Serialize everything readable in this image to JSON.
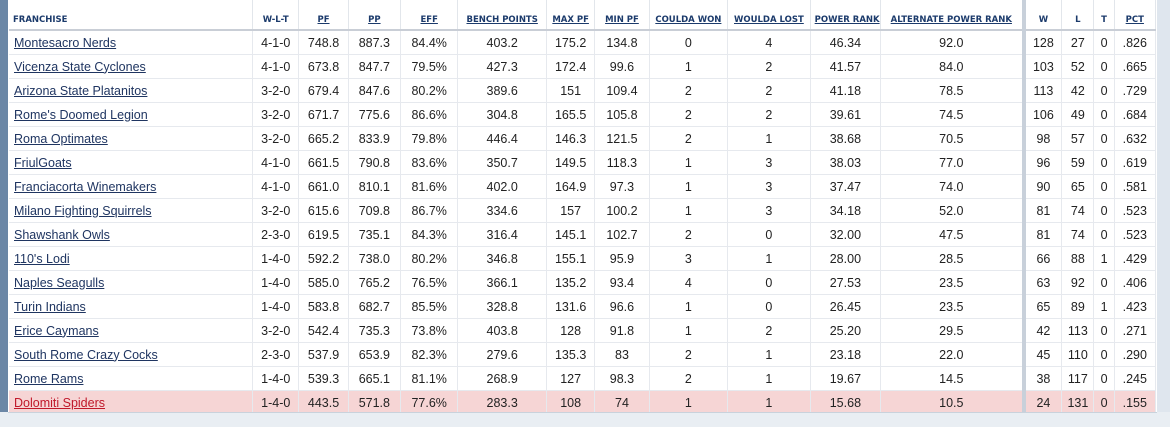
{
  "headers": {
    "franchise": "FRANCHISE",
    "wlt": "W-L-T",
    "pf": "PF",
    "pp": "PP",
    "eff": "EFF",
    "bench": "BENCH POINTS",
    "maxpf": "MAX PF",
    "minpf": "MIN PF",
    "coulda": "COULDA WON",
    "woulda": "WOULDA LOST",
    "power": "POWER RANK",
    "altpower": "ALTERNATE POWER RANK",
    "w": "W",
    "l": "L",
    "t": "T",
    "pct": "PCT"
  },
  "rows": [
    {
      "name": "Montesacro Nerds",
      "wlt": "4-1-0",
      "pf": "748.8",
      "pp": "887.3",
      "eff": "84.4%",
      "bench": "403.2",
      "maxpf": "175.2",
      "minpf": "134.8",
      "coulda": "0",
      "woulda": "4",
      "power": "46.34",
      "alt": "92.0",
      "w": "128",
      "l": "27",
      "t": "0",
      "pct": ".826"
    },
    {
      "name": "Vicenza State Cyclones",
      "wlt": "4-1-0",
      "pf": "673.8",
      "pp": "847.7",
      "eff": "79.5%",
      "bench": "427.3",
      "maxpf": "172.4",
      "minpf": "99.6",
      "coulda": "1",
      "woulda": "2",
      "power": "41.57",
      "alt": "84.0",
      "w": "103",
      "l": "52",
      "t": "0",
      "pct": ".665"
    },
    {
      "name": "Arizona State Platanitos",
      "wlt": "3-2-0",
      "pf": "679.4",
      "pp": "847.6",
      "eff": "80.2%",
      "bench": "389.6",
      "maxpf": "151",
      "minpf": "109.4",
      "coulda": "2",
      "woulda": "2",
      "power": "41.18",
      "alt": "78.5",
      "w": "113",
      "l": "42",
      "t": "0",
      "pct": ".729"
    },
    {
      "name": "Rome's Doomed Legion",
      "wlt": "3-2-0",
      "pf": "671.7",
      "pp": "775.6",
      "eff": "86.6%",
      "bench": "304.8",
      "maxpf": "165.5",
      "minpf": "105.8",
      "coulda": "2",
      "woulda": "2",
      "power": "39.61",
      "alt": "74.5",
      "w": "106",
      "l": "49",
      "t": "0",
      "pct": ".684"
    },
    {
      "name": "Roma Optimates",
      "wlt": "3-2-0",
      "pf": "665.2",
      "pp": "833.9",
      "eff": "79.8%",
      "bench": "446.4",
      "maxpf": "146.3",
      "minpf": "121.5",
      "coulda": "2",
      "woulda": "1",
      "power": "38.68",
      "alt": "70.5",
      "w": "98",
      "l": "57",
      "t": "0",
      "pct": ".632"
    },
    {
      "name": "FriulGoats",
      "wlt": "4-1-0",
      "pf": "661.5",
      "pp": "790.8",
      "eff": "83.6%",
      "bench": "350.7",
      "maxpf": "149.5",
      "minpf": "118.3",
      "coulda": "1",
      "woulda": "3",
      "power": "38.03",
      "alt": "77.0",
      "w": "96",
      "l": "59",
      "t": "0",
      "pct": ".619"
    },
    {
      "name": "Franciacorta Winemakers",
      "wlt": "4-1-0",
      "pf": "661.0",
      "pp": "810.1",
      "eff": "81.6%",
      "bench": "402.0",
      "maxpf": "164.9",
      "minpf": "97.3",
      "coulda": "1",
      "woulda": "3",
      "power": "37.47",
      "alt": "74.0",
      "w": "90",
      "l": "65",
      "t": "0",
      "pct": ".581"
    },
    {
      "name": "Milano Fighting Squirrels",
      "wlt": "3-2-0",
      "pf": "615.6",
      "pp": "709.8",
      "eff": "86.7%",
      "bench": "334.6",
      "maxpf": "157",
      "minpf": "100.2",
      "coulda": "1",
      "woulda": "3",
      "power": "34.18",
      "alt": "52.0",
      "w": "81",
      "l": "74",
      "t": "0",
      "pct": ".523"
    },
    {
      "name": "Shawshank Owls",
      "wlt": "2-3-0",
      "pf": "619.5",
      "pp": "735.1",
      "eff": "84.3%",
      "bench": "316.4",
      "maxpf": "145.1",
      "minpf": "102.7",
      "coulda": "2",
      "woulda": "0",
      "power": "32.00",
      "alt": "47.5",
      "w": "81",
      "l": "74",
      "t": "0",
      "pct": ".523"
    },
    {
      "name": "110's Lodi",
      "wlt": "1-4-0",
      "pf": "592.2",
      "pp": "738.0",
      "eff": "80.2%",
      "bench": "346.8",
      "maxpf": "155.1",
      "minpf": "95.9",
      "coulda": "3",
      "woulda": "1",
      "power": "28.00",
      "alt": "28.5",
      "w": "66",
      "l": "88",
      "t": "1",
      "pct": ".429"
    },
    {
      "name": "Naples Seagulls",
      "wlt": "1-4-0",
      "pf": "585.0",
      "pp": "765.2",
      "eff": "76.5%",
      "bench": "366.1",
      "maxpf": "135.2",
      "minpf": "93.4",
      "coulda": "4",
      "woulda": "0",
      "power": "27.53",
      "alt": "23.5",
      "w": "63",
      "l": "92",
      "t": "0",
      "pct": ".406"
    },
    {
      "name": "Turin Indians",
      "wlt": "1-4-0",
      "pf": "583.8",
      "pp": "682.7",
      "eff": "85.5%",
      "bench": "328.8",
      "maxpf": "131.6",
      "minpf": "96.6",
      "coulda": "1",
      "woulda": "0",
      "power": "26.45",
      "alt": "23.5",
      "w": "65",
      "l": "89",
      "t": "1",
      "pct": ".423"
    },
    {
      "name": "Erice Caymans",
      "wlt": "3-2-0",
      "pf": "542.4",
      "pp": "735.3",
      "eff": "73.8%",
      "bench": "403.8",
      "maxpf": "128",
      "minpf": "91.8",
      "coulda": "1",
      "woulda": "2",
      "power": "25.20",
      "alt": "29.5",
      "w": "42",
      "l": "113",
      "t": "0",
      "pct": ".271"
    },
    {
      "name": "South Rome Crazy Cocks",
      "wlt": "2-3-0",
      "pf": "537.9",
      "pp": "653.9",
      "eff": "82.3%",
      "bench": "279.6",
      "maxpf": "135.3",
      "minpf": "83",
      "coulda": "2",
      "woulda": "1",
      "power": "23.18",
      "alt": "22.0",
      "w": "45",
      "l": "110",
      "t": "0",
      "pct": ".290"
    },
    {
      "name": "Rome Rams",
      "wlt": "1-4-0",
      "pf": "539.3",
      "pp": "665.1",
      "eff": "81.1%",
      "bench": "268.9",
      "maxpf": "127",
      "minpf": "98.3",
      "coulda": "2",
      "woulda": "1",
      "power": "19.67",
      "alt": "14.5",
      "w": "38",
      "l": "117",
      "t": "0",
      "pct": ".245"
    },
    {
      "name": "Dolomiti Spiders",
      "wlt": "1-4-0",
      "pf": "443.5",
      "pp": "571.8",
      "eff": "77.6%",
      "bench": "283.3",
      "maxpf": "108",
      "minpf": "74",
      "coulda": "1",
      "woulda": "1",
      "power": "15.68",
      "alt": "10.5",
      "w": "24",
      "l": "131",
      "t": "0",
      "pct": ".155",
      "highlight": true
    }
  ]
}
